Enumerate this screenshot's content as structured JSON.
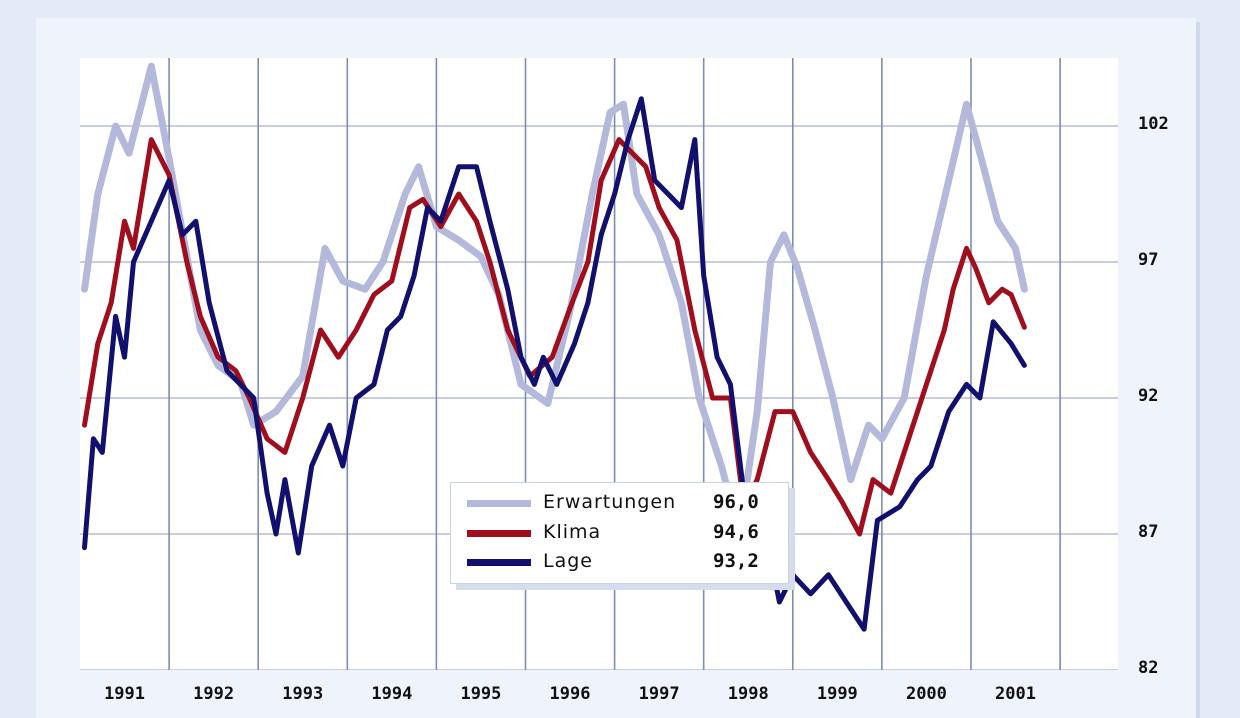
{
  "chart_data": {
    "type": "line",
    "title": "",
    "xlabel": "",
    "ylabel": "",
    "xlim": [
      1991.0,
      2002.65
    ],
    "ylim": [
      82,
      104.5
    ],
    "x_ticks": [
      1991,
      1992,
      1993,
      1994,
      1995,
      1996,
      1997,
      1998,
      1999,
      2000,
      2001
    ],
    "y_ticks": [
      82,
      87,
      92,
      97,
      102
    ],
    "y_tick_labels": [
      "82",
      "87",
      "92",
      "97",
      "102"
    ],
    "grid": "vertical lines at year boundaries, horizontal lines at y ticks",
    "legend_position": "bottom-center",
    "series": [
      {
        "name": "Erwartungen",
        "color": "#b4b9dc",
        "latest_value_label": "96,0",
        "points": [
          [
            1991.05,
            96.0
          ],
          [
            1991.2,
            99.5
          ],
          [
            1991.4,
            102.0
          ],
          [
            1991.55,
            101.0
          ],
          [
            1991.8,
            104.2
          ],
          [
            1992.0,
            100.8
          ],
          [
            1992.2,
            97.2
          ],
          [
            1992.35,
            94.5
          ],
          [
            1992.55,
            93.2
          ],
          [
            1992.8,
            92.6
          ],
          [
            1992.95,
            91.0
          ],
          [
            1993.2,
            91.5
          ],
          [
            1993.5,
            92.8
          ],
          [
            1993.75,
            97.5
          ],
          [
            1993.95,
            96.3
          ],
          [
            1994.2,
            96.0
          ],
          [
            1994.4,
            97.0
          ],
          [
            1994.65,
            99.5
          ],
          [
            1994.8,
            100.5
          ],
          [
            1995.0,
            98.3
          ],
          [
            1995.25,
            97.8
          ],
          [
            1995.5,
            97.2
          ],
          [
            1995.7,
            95.8
          ],
          [
            1995.95,
            92.5
          ],
          [
            1996.25,
            91.8
          ],
          [
            1996.5,
            95.2
          ],
          [
            1996.75,
            99.5
          ],
          [
            1996.95,
            102.5
          ],
          [
            1997.1,
            102.8
          ],
          [
            1997.25,
            99.5
          ],
          [
            1997.5,
            98.0
          ],
          [
            1997.75,
            95.5
          ],
          [
            1997.95,
            92.0
          ],
          [
            1998.2,
            89.5
          ],
          [
            1998.4,
            87.0
          ],
          [
            1998.6,
            91.5
          ],
          [
            1998.75,
            97.0
          ],
          [
            1998.9,
            98.0
          ],
          [
            1999.05,
            96.8
          ],
          [
            1999.25,
            94.5
          ],
          [
            1999.45,
            92.0
          ],
          [
            1999.65,
            89.0
          ],
          [
            1999.85,
            91.0
          ],
          [
            2000.0,
            90.5
          ],
          [
            2000.25,
            92.0
          ],
          [
            2000.5,
            96.5
          ],
          [
            2000.75,
            100.0
          ],
          [
            2000.95,
            102.8
          ],
          [
            2001.1,
            101.0
          ],
          [
            2001.3,
            98.5
          ],
          [
            2001.5,
            97.5
          ],
          [
            2001.6,
            96.0
          ]
        ]
      },
      {
        "name": "Klima",
        "color": "#a00e1e",
        "latest_value_label": "94,6",
        "points": [
          [
            1991.05,
            91.0
          ],
          [
            1991.2,
            94.0
          ],
          [
            1991.35,
            95.5
          ],
          [
            1991.5,
            98.5
          ],
          [
            1991.6,
            97.5
          ],
          [
            1991.8,
            101.5
          ],
          [
            1992.0,
            100.2
          ],
          [
            1992.2,
            97.0
          ],
          [
            1992.35,
            95.0
          ],
          [
            1992.55,
            93.5
          ],
          [
            1992.75,
            93.0
          ],
          [
            1992.9,
            92.0
          ],
          [
            1993.1,
            90.5
          ],
          [
            1993.3,
            90.0
          ],
          [
            1993.5,
            92.0
          ],
          [
            1993.7,
            94.5
          ],
          [
            1993.9,
            93.5
          ],
          [
            1994.1,
            94.5
          ],
          [
            1994.3,
            95.8
          ],
          [
            1994.5,
            96.3
          ],
          [
            1994.7,
            99.0
          ],
          [
            1994.85,
            99.3
          ],
          [
            1995.05,
            98.3
          ],
          [
            1995.25,
            99.5
          ],
          [
            1995.45,
            98.5
          ],
          [
            1995.6,
            97.0
          ],
          [
            1995.8,
            94.5
          ],
          [
            1996.05,
            92.8
          ],
          [
            1996.3,
            93.5
          ],
          [
            1996.5,
            95.3
          ],
          [
            1996.7,
            97.0
          ],
          [
            1996.85,
            100.0
          ],
          [
            1997.05,
            101.5
          ],
          [
            1997.2,
            101.0
          ],
          [
            1997.35,
            100.5
          ],
          [
            1997.5,
            99.0
          ],
          [
            1997.7,
            97.8
          ],
          [
            1997.9,
            94.5
          ],
          [
            1998.1,
            92.0
          ],
          [
            1998.3,
            92.0
          ],
          [
            1998.45,
            88.0
          ],
          [
            1998.6,
            89.0
          ],
          [
            1998.8,
            91.5
          ],
          [
            1999.0,
            91.5
          ],
          [
            1999.2,
            90.0
          ],
          [
            1999.4,
            89.0
          ],
          [
            1999.55,
            88.2
          ],
          [
            1999.75,
            87.0
          ],
          [
            1999.9,
            89.0
          ],
          [
            2000.1,
            88.5
          ],
          [
            2000.3,
            90.5
          ],
          [
            2000.5,
            92.5
          ],
          [
            2000.7,
            94.5
          ],
          [
            2000.8,
            96.0
          ],
          [
            2000.95,
            97.5
          ],
          [
            2001.05,
            96.8
          ],
          [
            2001.2,
            95.5
          ],
          [
            2001.35,
            96.0
          ],
          [
            2001.45,
            95.8
          ],
          [
            2001.6,
            94.6
          ]
        ]
      },
      {
        "name": "Lage",
        "color": "#12106e",
        "latest_value_label": "93,2",
        "points": [
          [
            1991.05,
            86.5
          ],
          [
            1991.15,
            90.5
          ],
          [
            1991.25,
            90.0
          ],
          [
            1991.4,
            95.0
          ],
          [
            1991.5,
            93.5
          ],
          [
            1991.6,
            97.0
          ],
          [
            1991.8,
            98.5
          ],
          [
            1992.0,
            100.0
          ],
          [
            1992.15,
            98.0
          ],
          [
            1992.3,
            98.5
          ],
          [
            1992.45,
            95.5
          ],
          [
            1992.65,
            93.0
          ],
          [
            1992.95,
            92.0
          ],
          [
            1993.1,
            88.5
          ],
          [
            1993.2,
            87.0
          ],
          [
            1993.3,
            89.0
          ],
          [
            1993.45,
            86.3
          ],
          [
            1993.6,
            89.5
          ],
          [
            1993.8,
            91.0
          ],
          [
            1993.95,
            89.5
          ],
          [
            1994.1,
            92.0
          ],
          [
            1994.3,
            92.5
          ],
          [
            1994.45,
            94.5
          ],
          [
            1994.6,
            95.0
          ],
          [
            1994.75,
            96.5
          ],
          [
            1994.9,
            99.0
          ],
          [
            1995.05,
            98.5
          ],
          [
            1995.25,
            100.5
          ],
          [
            1995.45,
            100.5
          ],
          [
            1995.6,
            98.5
          ],
          [
            1995.8,
            96.0
          ],
          [
            1995.95,
            93.5
          ],
          [
            1996.1,
            92.5
          ],
          [
            1996.2,
            93.5
          ],
          [
            1996.35,
            92.5
          ],
          [
            1996.55,
            94.0
          ],
          [
            1996.7,
            95.5
          ],
          [
            1996.85,
            98.0
          ],
          [
            1997.0,
            99.5
          ],
          [
            1997.15,
            101.5
          ],
          [
            1997.3,
            103.0
          ],
          [
            1997.45,
            100.0
          ],
          [
            1997.6,
            99.5
          ],
          [
            1997.75,
            99.0
          ],
          [
            1997.9,
            101.5
          ],
          [
            1998.0,
            96.5
          ],
          [
            1998.15,
            93.5
          ],
          [
            1998.3,
            92.5
          ],
          [
            1998.45,
            88.5
          ],
          [
            1998.65,
            87.8
          ],
          [
            1998.85,
            84.5
          ],
          [
            1999.0,
            85.5
          ],
          [
            1999.2,
            84.8
          ],
          [
            1999.4,
            85.5
          ],
          [
            1999.6,
            84.5
          ],
          [
            1999.8,
            83.5
          ],
          [
            1999.95,
            87.5
          ],
          [
            2000.2,
            88.0
          ],
          [
            2000.4,
            89.0
          ],
          [
            2000.55,
            89.5
          ],
          [
            2000.75,
            91.5
          ],
          [
            2000.95,
            92.5
          ],
          [
            2001.1,
            92.0
          ],
          [
            2001.25,
            94.8
          ],
          [
            2001.45,
            94.0
          ],
          [
            2001.6,
            93.2
          ]
        ]
      }
    ]
  }
}
